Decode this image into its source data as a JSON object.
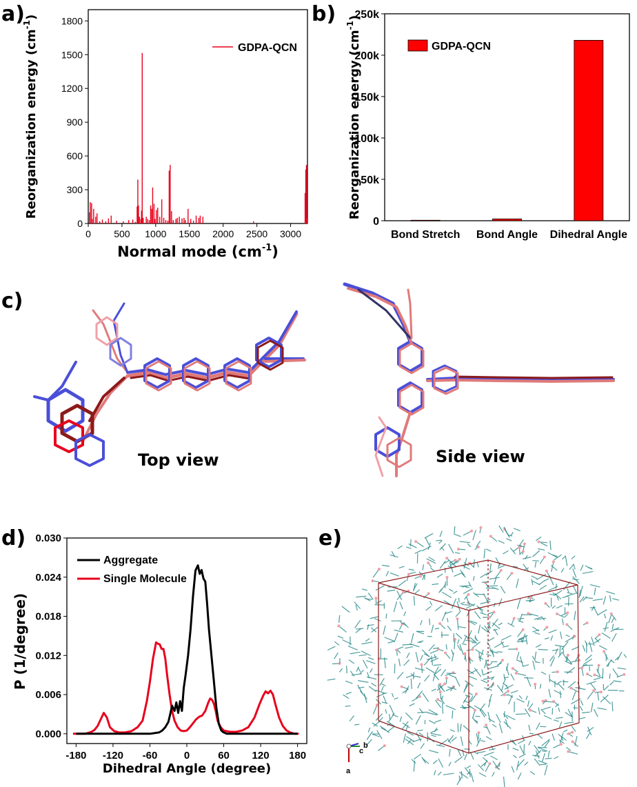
{
  "panel_labels": [
    "a)",
    "b)",
    "c)",
    "d)",
    "e)"
  ],
  "colors": {
    "red": "#e8001c",
    "black": "#000000",
    "bar_fill": "#ff0000",
    "blue": "#4a4fd8",
    "salmon": "#e07a7a",
    "darkred": "#8c1a1a",
    "teal": "#2e8b8b",
    "pink": "#f0a0a8"
  },
  "chart_data": [
    {
      "panel": "a",
      "type": "bar",
      "xlabel": "Normal mode (cm",
      "xlabel_sup": "-1",
      "xlabel_end": ")",
      "ylabel": "Reorganization energy (cm",
      "ylabel_sup": "-1",
      "ylabel_end": ")",
      "xlim": [
        0,
        3250
      ],
      "ylim": [
        0,
        1900
      ],
      "xticks": [
        0,
        500,
        1000,
        1500,
        2000,
        2500,
        3000
      ],
      "xtick_labels": [
        "0",
        "500",
        "1000",
        "1500",
        "2000",
        "2500",
        "3000"
      ],
      "yticks": [
        0,
        300,
        600,
        900,
        1200,
        1500,
        1800
      ],
      "ytick_labels": [
        "0",
        "300",
        "600",
        "900",
        "1200",
        "1500",
        "1800"
      ],
      "series": [
        {
          "name": "GDPA-QCN",
          "x": [
            20,
            30,
            50,
            60,
            80,
            110,
            130,
            170,
            210,
            260,
            300,
            340,
            420,
            520,
            600,
            660,
            700,
            725,
            735,
            745,
            760,
            780,
            790,
            800,
            815,
            860,
            880,
            905,
            925,
            940,
            955,
            975,
            990,
            1010,
            1030,
            1060,
            1090,
            1120,
            1150,
            1180,
            1200,
            1215,
            1235,
            1260,
            1300,
            1320,
            1350,
            1390,
            1420,
            1440,
            1480,
            1520,
            1560,
            1600,
            1640,
            1660,
            1700,
            2450,
            3215,
            3225,
            3235,
            3245
          ],
          "values": [
            100,
            190,
            180,
            40,
            130,
            60,
            90,
            20,
            35,
            20,
            45,
            70,
            25,
            20,
            30,
            35,
            15,
            150,
            390,
            160,
            60,
            40,
            115,
            1515,
            50,
            60,
            40,
            30,
            160,
            130,
            320,
            175,
            40,
            120,
            140,
            60,
            215,
            50,
            30,
            25,
            470,
            520,
            110,
            30,
            40,
            50,
            60,
            45,
            50,
            30,
            130,
            40,
            25,
            70,
            50,
            70,
            60,
            20,
            270,
            480,
            520,
            50
          ]
        }
      ]
    },
    {
      "panel": "b",
      "type": "bar",
      "ylabel": "Reorganization energy (cm",
      "ylabel_sup": "-1",
      "ylabel_end": ")",
      "categories": [
        "Bond Stretch",
        "Bond Angle",
        "Dihedral Angle"
      ],
      "ylim": [
        0,
        250000
      ],
      "yticks": [
        0,
        50000,
        100000,
        150000,
        200000,
        250000
      ],
      "ytick_labels": [
        "0",
        "50k",
        "100k",
        "150k",
        "200k",
        "250k"
      ],
      "series": [
        {
          "name": "GDPA-QCN",
          "values": [
            600,
            2200,
            218000
          ]
        }
      ]
    },
    {
      "panel": "d",
      "type": "line",
      "xlabel": "Dihedral Angle (degree)",
      "ylabel": "P (1/degree)",
      "xlim": [
        -195,
        195
      ],
      "ylim": [
        -0.0015,
        0.03
      ],
      "xticks": [
        -180,
        -120,
        -60,
        0,
        60,
        120,
        180
      ],
      "xtick_labels": [
        "-180",
        "-120",
        "-60",
        "0",
        "60",
        "120",
        "180"
      ],
      "yticks": [
        0,
        0.006,
        0.012,
        0.018,
        0.024,
        0.03
      ],
      "ytick_labels": [
        "0.000",
        "0.006",
        "0.012",
        "0.018",
        "0.024",
        "0.030"
      ],
      "series": [
        {
          "name": "Aggregate",
          "x": [
            -180,
            -60,
            -45,
            -40,
            -35,
            -30,
            -27,
            -24,
            -20,
            -17,
            -14,
            -11,
            -8,
            -5,
            -2,
            2,
            6,
            10,
            14,
            18,
            21,
            24,
            27,
            30,
            33,
            36,
            40,
            44,
            48,
            52,
            56,
            60,
            65,
            80,
            180
          ],
          "values": [
            0,
            0,
            0.0002,
            0.0005,
            0.001,
            0.0018,
            0.003,
            0.0043,
            0.0035,
            0.0048,
            0.0032,
            0.005,
            0.0035,
            0.007,
            0.009,
            0.012,
            0.016,
            0.021,
            0.025,
            0.0258,
            0.0245,
            0.0251,
            0.0238,
            0.0233,
            0.02,
            0.016,
            0.012,
            0.008,
            0.004,
            0.0015,
            0.0005,
            0.0002,
            0,
            0,
            0
          ]
        },
        {
          "name": "Single Molecule",
          "x": [
            -185,
            -175,
            -165,
            -155,
            -150,
            -145,
            -140,
            -135,
            -130,
            -125,
            -118,
            -110,
            -100,
            -90,
            -80,
            -72,
            -65,
            -60,
            -55,
            -50,
            -47,
            -44,
            -41,
            -38,
            -35,
            -32,
            -28,
            -24,
            -20,
            -15,
            -10,
            -5,
            0,
            5,
            10,
            15,
            20,
            25,
            30,
            35,
            38,
            41,
            44,
            47,
            50,
            55,
            60,
            70,
            80,
            90,
            100,
            110,
            118,
            124,
            128,
            132,
            136,
            140,
            144,
            150,
            156,
            162,
            168,
            175,
            182
          ],
          "values": [
            0,
            0,
            0,
            0.0003,
            0.0006,
            0.0012,
            0.0022,
            0.0032,
            0.0025,
            0.001,
            0.0004,
            0.0002,
            0.0002,
            0.0004,
            0.001,
            0.002,
            0.005,
            0.008,
            0.0115,
            0.014,
            0.0138,
            0.0137,
            0.013,
            0.013,
            0.0115,
            0.009,
            0.006,
            0.0035,
            0.002,
            0.001,
            0.0005,
            0.0004,
            0.0005,
            0.001,
            0.0016,
            0.0022,
            0.0026,
            0.0028,
            0.0035,
            0.0048,
            0.0054,
            0.0052,
            0.0046,
            0.0035,
            0.002,
            0.001,
            0.0005,
            0.0003,
            0.0003,
            0.0005,
            0.001,
            0.0025,
            0.0045,
            0.0058,
            0.0065,
            0.0062,
            0.0066,
            0.006,
            0.0045,
            0.0025,
            0.0012,
            0.0005,
            0.0002,
            0,
            0
          ]
        }
      ]
    }
  ],
  "panel_c": {
    "top_label": "Top view",
    "side_label": "Side view"
  },
  "panel_e": {
    "axis_labels": [
      "b",
      "c",
      "a"
    ]
  }
}
